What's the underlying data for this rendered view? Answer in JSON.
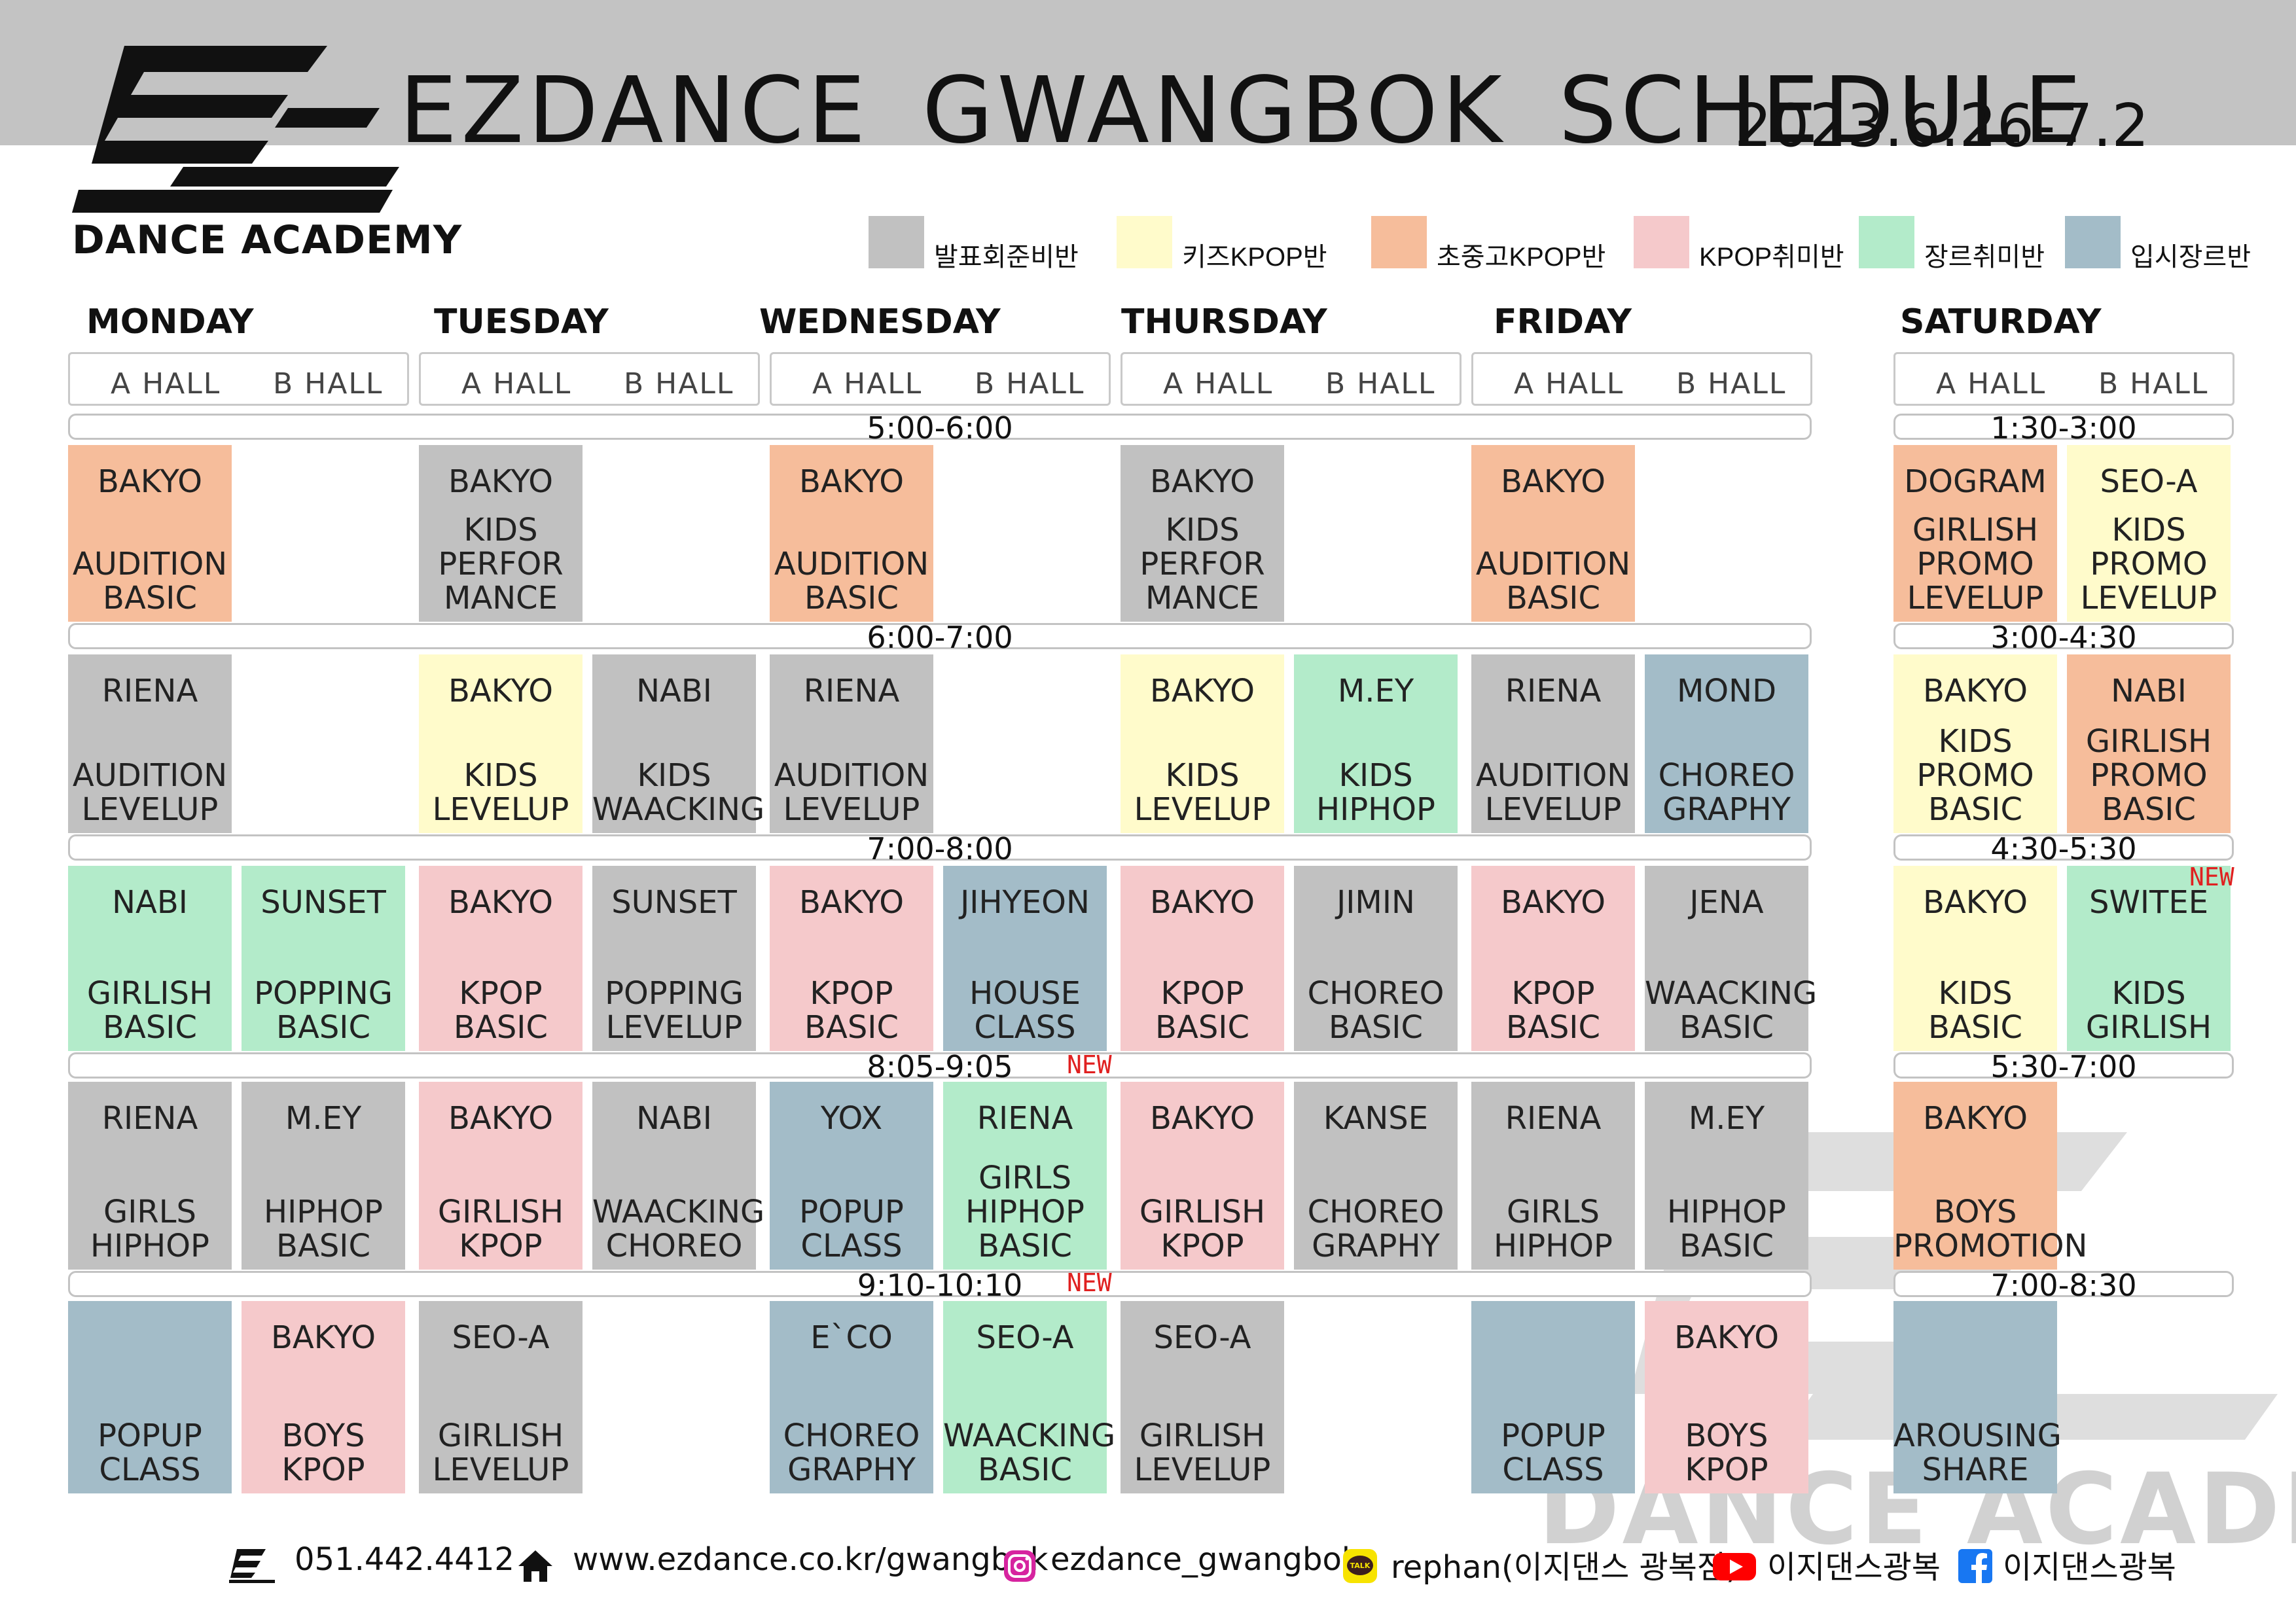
{
  "header": {
    "logo_text": "DANCE ACADEMY",
    "title": "EZDANCE  GWANGBOK  SCHEDULE",
    "date_range": "2023.6.26-7.2"
  },
  "colors": {
    "gray": "#c1c1c1",
    "yellow": "#fffbcb",
    "orange": "#f6bd9b",
    "pink": "#f5c9cb",
    "green": "#b3ebca",
    "blue": "#a3bcc8",
    "new": "#e02020"
  },
  "legend": [
    {
      "label": "발표회준비반",
      "color": "gray"
    },
    {
      "label": "키즈KPOP반",
      "color": "yellow"
    },
    {
      "label": "초중고KPOP반",
      "color": "orange"
    },
    {
      "label": "KPOP취미반",
      "color": "pink"
    },
    {
      "label": "장르취미반",
      "color": "green"
    },
    {
      "label": "입시장르반",
      "color": "blue"
    }
  ],
  "days": [
    "MONDAY",
    "TUESDAY",
    "WEDNESDAY",
    "THURSDAY",
    "FRIDAY",
    "SATURDAY"
  ],
  "halls": {
    "a": "A  HALL",
    "b": "B  HALL"
  },
  "weekday_times": [
    "5:00-6:00",
    "6:00-7:00",
    "7:00-8:00",
    "8:05-9:05",
    "9:10-10:10"
  ],
  "saturday_times": [
    "1:30-3:00",
    "3:00-4:30",
    "4:30-5:30",
    "5:30-7:00",
    "7:00-8:30"
  ],
  "new_label": "NEW",
  "weekday_rows": [
    [
      {
        "inst": "BAKYO",
        "cls": "AUDITION\nBASIC",
        "color": "orange"
      },
      null,
      {
        "inst": "BAKYO",
        "cls": "KIDS\nPERFOR\nMANCE",
        "color": "gray"
      },
      null,
      {
        "inst": "BAKYO",
        "cls": "AUDITION\nBASIC",
        "color": "orange"
      },
      null,
      {
        "inst": "BAKYO",
        "cls": "KIDS\nPERFOR\nMANCE",
        "color": "gray"
      },
      null,
      {
        "inst": "BAKYO",
        "cls": "AUDITION\nBASIC",
        "color": "orange"
      },
      null
    ],
    [
      {
        "inst": "RIENA",
        "cls": "AUDITION\nLEVELUP",
        "color": "gray"
      },
      null,
      {
        "inst": "BAKYO",
        "cls": "KIDS\nLEVELUP",
        "color": "yellow"
      },
      {
        "inst": "NABI",
        "cls": "KIDS\nWAACKING",
        "color": "gray"
      },
      {
        "inst": "RIENA",
        "cls": "AUDITION\nLEVELUP",
        "color": "gray"
      },
      null,
      {
        "inst": "BAKYO",
        "cls": "KIDS\nLEVELUP",
        "color": "yellow"
      },
      {
        "inst": "M.EY",
        "cls": "KIDS\nHIPHOP",
        "color": "green"
      },
      {
        "inst": "RIENA",
        "cls": "AUDITION\nLEVELUP",
        "color": "gray"
      },
      {
        "inst": "MOND",
        "cls": "CHOREO\nGRAPHY",
        "color": "blue"
      }
    ],
    [
      {
        "inst": "NABI",
        "cls": "GIRLISH\nBASIC",
        "color": "green"
      },
      {
        "inst": "SUNSET",
        "cls": "POPPING\nBASIC",
        "color": "green"
      },
      {
        "inst": "BAKYO",
        "cls": "KPOP\nBASIC",
        "color": "pink"
      },
      {
        "inst": "SUNSET",
        "cls": "POPPING\nLEVELUP",
        "color": "gray"
      },
      {
        "inst": "BAKYO",
        "cls": "KPOP\nBASIC",
        "color": "pink"
      },
      {
        "inst": "JIHYEON",
        "cls": "HOUSE\nCLASS",
        "color": "blue"
      },
      {
        "inst": "BAKYO",
        "cls": "KPOP\nBASIC",
        "color": "pink"
      },
      {
        "inst": "JIMIN",
        "cls": "CHOREO\nBASIC",
        "color": "gray"
      },
      {
        "inst": "BAKYO",
        "cls": "KPOP\nBASIC",
        "color": "pink"
      },
      {
        "inst": "JENA",
        "cls": "WAACKING\nBASIC",
        "color": "gray"
      }
    ],
    [
      {
        "inst": "RIENA",
        "cls": "GIRLS\nHIPHOP",
        "color": "gray"
      },
      {
        "inst": "M.EY",
        "cls": "HIPHOP\nBASIC",
        "color": "gray"
      },
      {
        "inst": "BAKYO",
        "cls": "GIRLISH\nKPOP",
        "color": "pink"
      },
      {
        "inst": "NABI",
        "cls": "WAACKING\nCHOREO",
        "color": "gray"
      },
      {
        "inst": "YOX",
        "cls": "POPUP\nCLASS",
        "color": "blue"
      },
      {
        "inst": "RIENA",
        "cls": "GIRLS\nHIPHOP\nBASIC",
        "color": "green"
      },
      {
        "inst": "BAKYO",
        "cls": "GIRLISH\nKPOP",
        "color": "pink"
      },
      {
        "inst": "KANSE",
        "cls": "CHOREO\nGRAPHY",
        "color": "gray"
      },
      {
        "inst": "RIENA",
        "cls": "GIRLS\nHIPHOP",
        "color": "gray"
      },
      {
        "inst": "M.EY",
        "cls": "HIPHOP\nBASIC",
        "color": "gray"
      }
    ],
    [
      {
        "inst": "",
        "cls": "POPUP\nCLASS",
        "color": "blue"
      },
      {
        "inst": "BAKYO",
        "cls": "BOYS\nKPOP",
        "color": "pink"
      },
      {
        "inst": "SEO-A",
        "cls": "GIRLISH\nLEVELUP",
        "color": "gray"
      },
      null,
      {
        "inst": "E`CO",
        "cls": "CHOREO\nGRAPHY",
        "color": "blue"
      },
      {
        "inst": "SEO-A",
        "cls": "WAACKING\nBASIC",
        "color": "green"
      },
      {
        "inst": "SEO-A",
        "cls": "GIRLISH\nLEVELUP",
        "color": "gray"
      },
      null,
      {
        "inst": "",
        "cls": "POPUP\nCLASS",
        "color": "blue"
      },
      {
        "inst": "BAKYO",
        "cls": "BOYS\nKPOP",
        "color": "pink"
      }
    ]
  ],
  "saturday_rows": [
    [
      {
        "inst": "DOGRAM",
        "cls": "GIRLISH\nPROMO\nLEVELUP",
        "color": "orange"
      },
      {
        "inst": "SEO-A",
        "cls": "KIDS\nPROMO\nLEVELUP",
        "color": "yellow"
      }
    ],
    [
      {
        "inst": "BAKYO",
        "cls": "KIDS\nPROMO\nBASIC",
        "color": "yellow"
      },
      {
        "inst": "NABI",
        "cls": "GIRLISH\nPROMO\nBASIC",
        "color": "orange"
      }
    ],
    [
      {
        "inst": "BAKYO",
        "cls": "KIDS\nBASIC",
        "color": "yellow"
      },
      {
        "inst": "SWITEE",
        "cls": "KIDS\nGIRLISH",
        "color": "green"
      }
    ],
    [
      {
        "inst": "BAKYO",
        "cls": "BOYS\nPROMOTION",
        "color": "orange"
      },
      null
    ],
    [
      {
        "inst": "",
        "cls": "AROUSING\nSHARE",
        "color": "blue"
      },
      null
    ]
  ],
  "watermark_text": "DANCE ACADEMY",
  "footer": {
    "phone": "051.442.4412",
    "website": "www.ezdance.co.kr/gwangbok",
    "instagram": "ezdance_gwangbok",
    "kakao": "rephan(이지댄스 광복점)",
    "kakao_icon": "TALK",
    "youtube": "이지댄스광복",
    "facebook": "이지댄스광복"
  }
}
